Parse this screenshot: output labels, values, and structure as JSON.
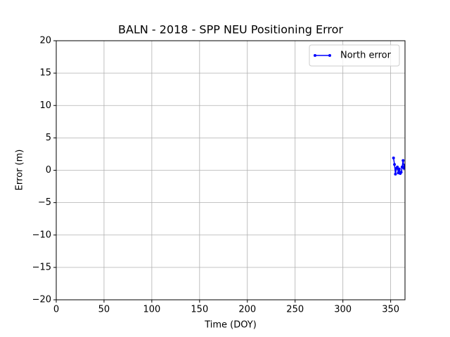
{
  "chart_data": {
    "type": "line",
    "title": "BALN - 2018 - SPP NEU Positioning Error",
    "x_label": "Time (DOY)",
    "y_label": "Error (m)",
    "x": [
      353,
      354,
      355,
      356,
      357,
      358,
      359,
      360,
      361,
      362,
      363,
      364,
      365
    ],
    "series": [
      {
        "name": "North error",
        "color": "#0000ff",
        "values": [
          1.9,
          0.9,
          -0.6,
          0.3,
          0.5,
          -0.4,
          0.2,
          -0.5,
          -0.3,
          0.5,
          1.5,
          0.3,
          0.8
        ]
      }
    ],
    "xlim": [
      0,
      365
    ],
    "xticks": [
      0,
      50,
      100,
      150,
      200,
      250,
      300,
      350
    ],
    "ylim": [
      -20,
      20
    ],
    "yticks": [
      -20,
      -15,
      -10,
      -5,
      0,
      5,
      10,
      15,
      20
    ],
    "yticks_labels_note_free": true,
    "grid": true,
    "legend": "upper right"
  }
}
